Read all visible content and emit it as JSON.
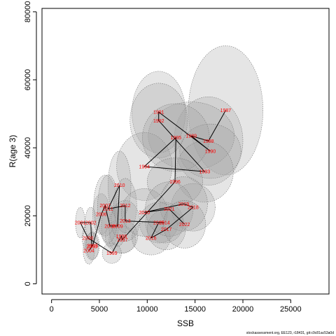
{
  "chart_data": {
    "type": "scatter",
    "xlabel": "SSB",
    "ylabel": "R(age 3)",
    "xlim": [
      -1000,
      29000
    ],
    "ylim": [
      -3000,
      81000
    ],
    "xticks": [
      "0",
      "5000",
      "10000",
      "15000",
      "20000",
      "25000"
    ],
    "yticks": [
      "0",
      "20000",
      "40000",
      "60000",
      "80000"
    ],
    "grid": false,
    "legend": "none",
    "point_color": "#ff0000",
    "line_color": "#000000",
    "ellipse_fill": "#a0a0a0",
    "points": [
      {
        "year": "1987",
        "ssb": 18200,
        "rec": 51000,
        "sdx": 3900,
        "sdy": 19000
      },
      {
        "year": "1988",
        "ssb": 16400,
        "rec": 42000,
        "sdx": 3600,
        "sdy": 13000
      },
      {
        "year": "1989",
        "ssb": 14600,
        "rec": 43500,
        "sdx": 4500,
        "sdy": 10000
      },
      {
        "year": "1990",
        "ssb": 16600,
        "rec": 39000,
        "sdx": 3200,
        "sdy": 8000
      },
      {
        "year": "1991",
        "ssb": 11200,
        "rec": 50500,
        "sdx": 2800,
        "sdy": 12000
      },
      {
        "year": "1992",
        "ssb": 11200,
        "rec": 48000,
        "sdx": 3000,
        "sdy": 11000
      },
      {
        "year": "1993",
        "ssb": 16000,
        "rec": 33000,
        "sdx": 3000,
        "sdy": 9000
      },
      {
        "year": "1994",
        "ssb": 9700,
        "rec": 34500,
        "sdx": 2900,
        "sdy": 10000
      },
      {
        "year": "1995",
        "ssb": 13000,
        "rec": 43000,
        "sdx": 3500,
        "sdy": 10000
      },
      {
        "year": "1996",
        "ssb": 12900,
        "rec": 30000,
        "sdx": 2900,
        "sdy": 7000
      },
      {
        "year": "1997",
        "ssb": 7400,
        "rec": 13000,
        "sdx": 1400,
        "sdy": 4000
      },
      {
        "year": "1998",
        "ssb": 7300,
        "rec": 14000,
        "sdx": 1700,
        "sdy": 5000
      },
      {
        "year": "1999",
        "ssb": 6300,
        "rec": 9000,
        "sdx": 1000,
        "sdy": 3000
      },
      {
        "year": "2000",
        "ssb": 3800,
        "rec": 13500,
        "sdx": 600,
        "sdy": 4000
      },
      {
        "year": "2001",
        "ssb": 3000,
        "rec": 18000,
        "sdx": 500,
        "sdy": 4500
      },
      {
        "year": "2002",
        "ssb": 4100,
        "rec": 18000,
        "sdx": 600,
        "sdy": 4500
      },
      {
        "year": "2003",
        "ssb": 4200,
        "rec": 11000,
        "sdx": 700,
        "sdy": 4000
      },
      {
        "year": "2004",
        "ssb": 3900,
        "rec": 9800,
        "sdx": 600,
        "sdy": 4000
      },
      {
        "year": "2005",
        "ssb": 4300,
        "rec": 11200,
        "sdx": 700,
        "sdy": 4000
      },
      {
        "year": "2006",
        "ssb": 5200,
        "rec": 20500,
        "sdx": 900,
        "sdy": 6000
      },
      {
        "year": "2007",
        "ssb": 5600,
        "rec": 23000,
        "sdx": 1200,
        "sdy": 9000
      },
      {
        "year": "2008",
        "ssb": 6100,
        "rec": 17000,
        "sdx": 900,
        "sdy": 6000
      },
      {
        "year": "2009",
        "ssb": 6900,
        "rec": 17000,
        "sdx": 900,
        "sdy": 6000
      },
      {
        "year": "2010",
        "ssb": 7100,
        "rec": 29000,
        "sdx": 1200,
        "sdy": 10000
      },
      {
        "year": "2011",
        "ssb": 5900,
        "rec": 22000,
        "sdx": 1100,
        "sdy": 10000
      },
      {
        "year": "2012",
        "ssb": 7700,
        "rec": 23000,
        "sdx": 1200,
        "sdy": 8000
      },
      {
        "year": "2013",
        "ssb": 7700,
        "rec": 18500,
        "sdx": 1500,
        "sdy": 6000
      },
      {
        "year": "2014",
        "ssb": 11800,
        "rec": 18000,
        "sdx": 2000,
        "sdy": 6000
      },
      {
        "year": "2015",
        "ssb": 11200,
        "rec": 18000,
        "sdx": 2000,
        "sdy": 6000
      },
      {
        "year": "2016",
        "ssb": 10400,
        "rec": 13500,
        "sdx": 2000,
        "sdy": 5000
      },
      {
        "year": "2017",
        "ssb": 12000,
        "rec": 16000,
        "sdx": 2000,
        "sdy": 6000
      },
      {
        "year": "2018",
        "ssb": 14800,
        "rec": 22500,
        "sdx": 2300,
        "sdy": 7000
      },
      {
        "year": "2019",
        "ssb": 13800,
        "rec": 23500,
        "sdx": 2500,
        "sdy": 8000
      },
      {
        "year": "2020",
        "ssb": 9700,
        "rec": 21000,
        "sdx": 2400,
        "sdy": 7000
      },
      {
        "year": "2021",
        "ssb": 12300,
        "rec": 22000,
        "sdx": 2500,
        "sdy": 8000
      },
      {
        "year": "2022",
        "ssb": 13900,
        "rec": 17500,
        "sdx": 2200,
        "sdy": 7000
      }
    ],
    "footnote": "stockassessment.org, EE123, r18431, git:c9c81ac53a0d"
  }
}
